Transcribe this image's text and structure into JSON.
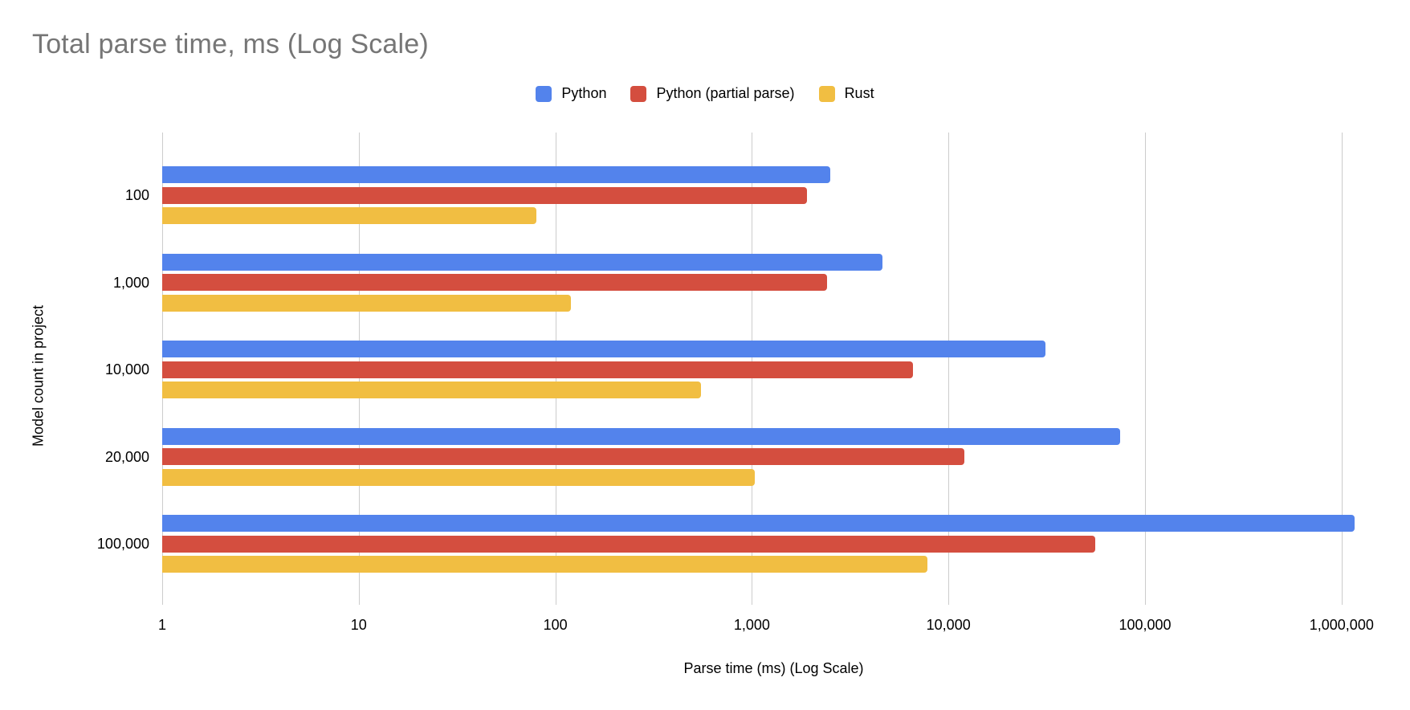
{
  "chart_data": {
    "type": "bar",
    "orientation": "horizontal",
    "x_scale": "log",
    "title": "Total parse time, ms (Log Scale)",
    "xlabel": "Parse time (ms) (Log Scale)",
    "ylabel": "Model count in project",
    "categories": [
      "100",
      "1,000",
      "10,000",
      "20,000",
      "100,000"
    ],
    "x_ticks": [
      "1",
      "10",
      "100",
      "1,000",
      "10,000",
      "100,000",
      "1,000,000"
    ],
    "xlim": [
      1,
      1000000
    ],
    "grid": true,
    "legend_position": "top",
    "series": [
      {
        "name": "Python",
        "color": "#5383EC",
        "values": [
          2500,
          4600,
          31000,
          75000,
          1160000
        ]
      },
      {
        "name": "Python (partial parse)",
        "color": "#D44E3F",
        "values": [
          1900,
          2400,
          6600,
          12000,
          56000
        ]
      },
      {
        "name": "Rust",
        "color": "#F1BE42",
        "values": [
          80,
          120,
          550,
          1030,
          7800
        ]
      }
    ],
    "colors": {
      "grid": "#CCCCCC",
      "title_text": "#767676",
      "axis_text": "#000000"
    }
  }
}
